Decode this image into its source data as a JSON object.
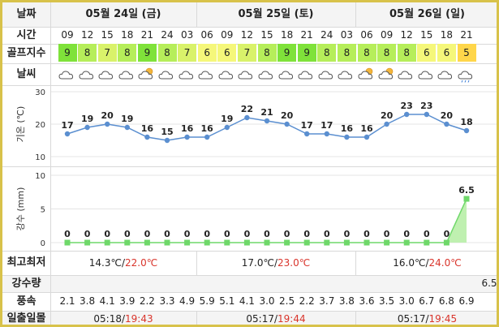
{
  "rows": {
    "date": "날짜",
    "time": "시간",
    "golf": "골프지수",
    "weather": "날씨",
    "temp_axis": "기온 (℃)",
    "rain_axis": "강수 (mm)",
    "minmax": "최고최저",
    "rain": "강수량",
    "wind": "풍속",
    "sun": "일출일몰"
  },
  "dates": [
    "05월 24일 (금)",
    "05월 25일 (토)",
    "05월 26일 (일)"
  ],
  "hours": [
    "09",
    "12",
    "15",
    "18",
    "21",
    "24",
    "03",
    "06",
    "09",
    "12",
    "15",
    "18",
    "21",
    "24",
    "03",
    "06",
    "09",
    "12",
    "15",
    "18",
    "21"
  ],
  "golf_index": [
    9,
    8,
    7,
    8,
    9,
    8,
    7,
    6,
    6,
    7,
    8,
    9,
    9,
    8,
    8,
    8,
    8,
    8,
    6,
    6,
    5
  ],
  "golf_colors": {
    "9": "#7fe23a",
    "8": "#b6ee5a",
    "7": "#d9f26a",
    "6": "#f5f77a",
    "5": "#ffd64a"
  },
  "weather_icons": [
    "cloud-icon",
    "cloud-icon",
    "cloud-icon",
    "cloud-icon",
    "cloud-sun-icon",
    "cloud-icon",
    "cloud-icon",
    "cloud-icon",
    "cloud-icon",
    "cloud-icon",
    "cloud-icon",
    "cloud-icon",
    "cloud-icon",
    "cloud-icon",
    "cloud-icon",
    "cloud-sun-icon",
    "cloud-sun-icon",
    "cloud-icon",
    "cloud-icon",
    "cloud-icon",
    "rain-icon"
  ],
  "chart_data": [
    {
      "type": "line",
      "ylabel": "기온 (℃)",
      "ylim": [
        10,
        30
      ],
      "yticks": [
        10,
        20,
        30
      ],
      "x": [
        "09",
        "12",
        "15",
        "18",
        "21",
        "24",
        "03",
        "06",
        "09",
        "12",
        "15",
        "18",
        "21",
        "24",
        "03",
        "06",
        "09",
        "12",
        "15",
        "18",
        "21"
      ],
      "values": [
        17,
        19,
        20,
        19,
        16,
        15,
        16,
        16,
        19,
        22,
        21,
        20,
        17,
        17,
        16,
        16,
        20,
        23,
        23,
        20,
        18
      ],
      "color": "#5b8fd0"
    },
    {
      "type": "area",
      "ylabel": "강수 (mm)",
      "ylim": [
        0,
        10
      ],
      "yticks": [
        0,
        5,
        10
      ],
      "x": [
        "09",
        "12",
        "15",
        "18",
        "21",
        "24",
        "03",
        "06",
        "09",
        "12",
        "15",
        "18",
        "21",
        "24",
        "03",
        "06",
        "09",
        "12",
        "15",
        "18",
        "21"
      ],
      "values": [
        0,
        0,
        0,
        0,
        0,
        0,
        0,
        0,
        0,
        0,
        0,
        0,
        0,
        0,
        0,
        0,
        0,
        0,
        0,
        0,
        6.5
      ],
      "color": "#6fd86a"
    }
  ],
  "minmax": [
    {
      "min": "14.3℃",
      "sep": "/",
      "max": "22.0℃"
    },
    {
      "min": "17.0℃",
      "sep": "/",
      "max": "23.0℃"
    },
    {
      "min": "16.0℃",
      "sep": "/",
      "max": "24.0℃"
    }
  ],
  "rain_value": "6.5",
  "wind": [
    "2.1",
    "3.8",
    "4.1",
    "3.9",
    "2.2",
    "3.3",
    "4.9",
    "5.9",
    "5.1",
    "4.1",
    "3.0",
    "2.5",
    "2.2",
    "3.7",
    "3.8",
    "3.6",
    "3.5",
    "3.0",
    "6.7",
    "6.8",
    "6.9"
  ],
  "sun": [
    {
      "rise": "05:18",
      "sep": "/",
      "set": "19:43"
    },
    {
      "rise": "05:17",
      "sep": "/",
      "set": "19:44"
    },
    {
      "rise": "05:17",
      "sep": "/",
      "set": "19:45"
    }
  ]
}
